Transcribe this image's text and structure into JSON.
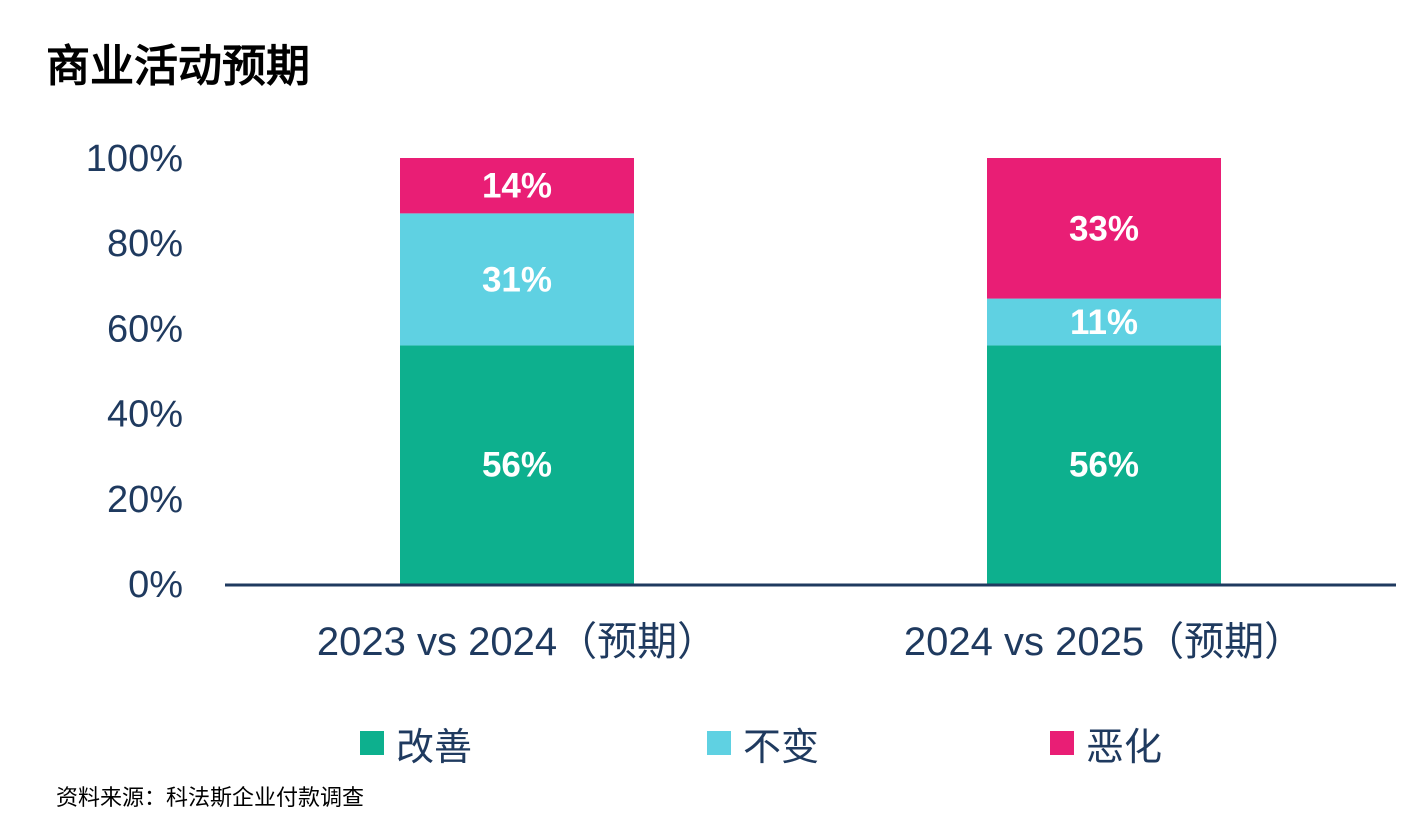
{
  "chart_data": {
    "type": "bar",
    "stacked": true,
    "title": "商业活动预期",
    "categories": [
      "2023 vs 2024（预期）",
      "2024 vs 2025（预期）"
    ],
    "series": [
      {
        "name": "改善",
        "values": [
          56,
          56
        ],
        "labels": [
          "56%",
          "56%"
        ],
        "color": "#0db08e"
      },
      {
        "name": "不变",
        "values": [
          31,
          11
        ],
        "labels": [
          "31%",
          "11%"
        ],
        "color": "#5fd1e2"
      },
      {
        "name": "恶化",
        "values": [
          14,
          33
        ],
        "labels": [
          "14%",
          "33%"
        ],
        "color": "#e91e75"
      }
    ],
    "y_ticks": [
      "0%",
      "20%",
      "40%",
      "60%",
      "80%",
      "100%"
    ],
    "ylim": [
      0,
      100
    ],
    "grid": false,
    "legend_position": "bottom",
    "axis_color": "#1f3a5f"
  },
  "source": "资料来源：科法斯企业付款调查"
}
